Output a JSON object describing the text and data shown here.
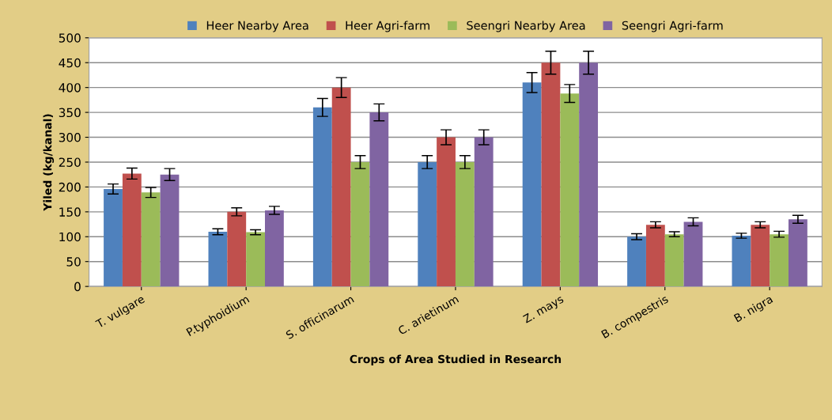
{
  "chart_data": {
    "type": "bar",
    "xlabel": "Crops of Area Studied in Research",
    "ylabel": "Yiled (kg/kanal)",
    "categories": [
      "T. vulgare",
      "P.typhoidium",
      "S. officinarum",
      "C. arietinum",
      "Z. mays",
      "B. compestris",
      "B. nigra"
    ],
    "series": [
      {
        "name": "Heer Nearby Area",
        "color": "#4f81bd",
        "values": [
          196,
          110,
          360,
          250,
          410,
          100,
          102
        ],
        "errors": [
          10,
          6,
          18,
          13,
          20,
          6,
          5
        ]
      },
      {
        "name": "Heer Agri-farm",
        "color": "#c0504d",
        "values": [
          227,
          150,
          400,
          300,
          450,
          124,
          124
        ],
        "errors": [
          11,
          8,
          20,
          15,
          23,
          6,
          6
        ]
      },
      {
        "name": "Seengri Nearby Area",
        "color": "#9bbb59",
        "values": [
          189,
          109,
          250,
          250,
          388,
          105,
          105
        ],
        "errors": [
          10,
          5,
          13,
          13,
          18,
          5,
          6
        ]
      },
      {
        "name": "Seengri Agri-farm",
        "color": "#8064a2",
        "values": [
          225,
          153,
          350,
          300,
          450,
          130,
          135
        ],
        "errors": [
          12,
          8,
          17,
          15,
          23,
          8,
          8
        ]
      }
    ],
    "ylim": [
      0,
      500
    ],
    "yticks": [
      0,
      50,
      100,
      150,
      200,
      250,
      300,
      350,
      400,
      450,
      500
    ],
    "grid": "y",
    "legend": "top"
  }
}
